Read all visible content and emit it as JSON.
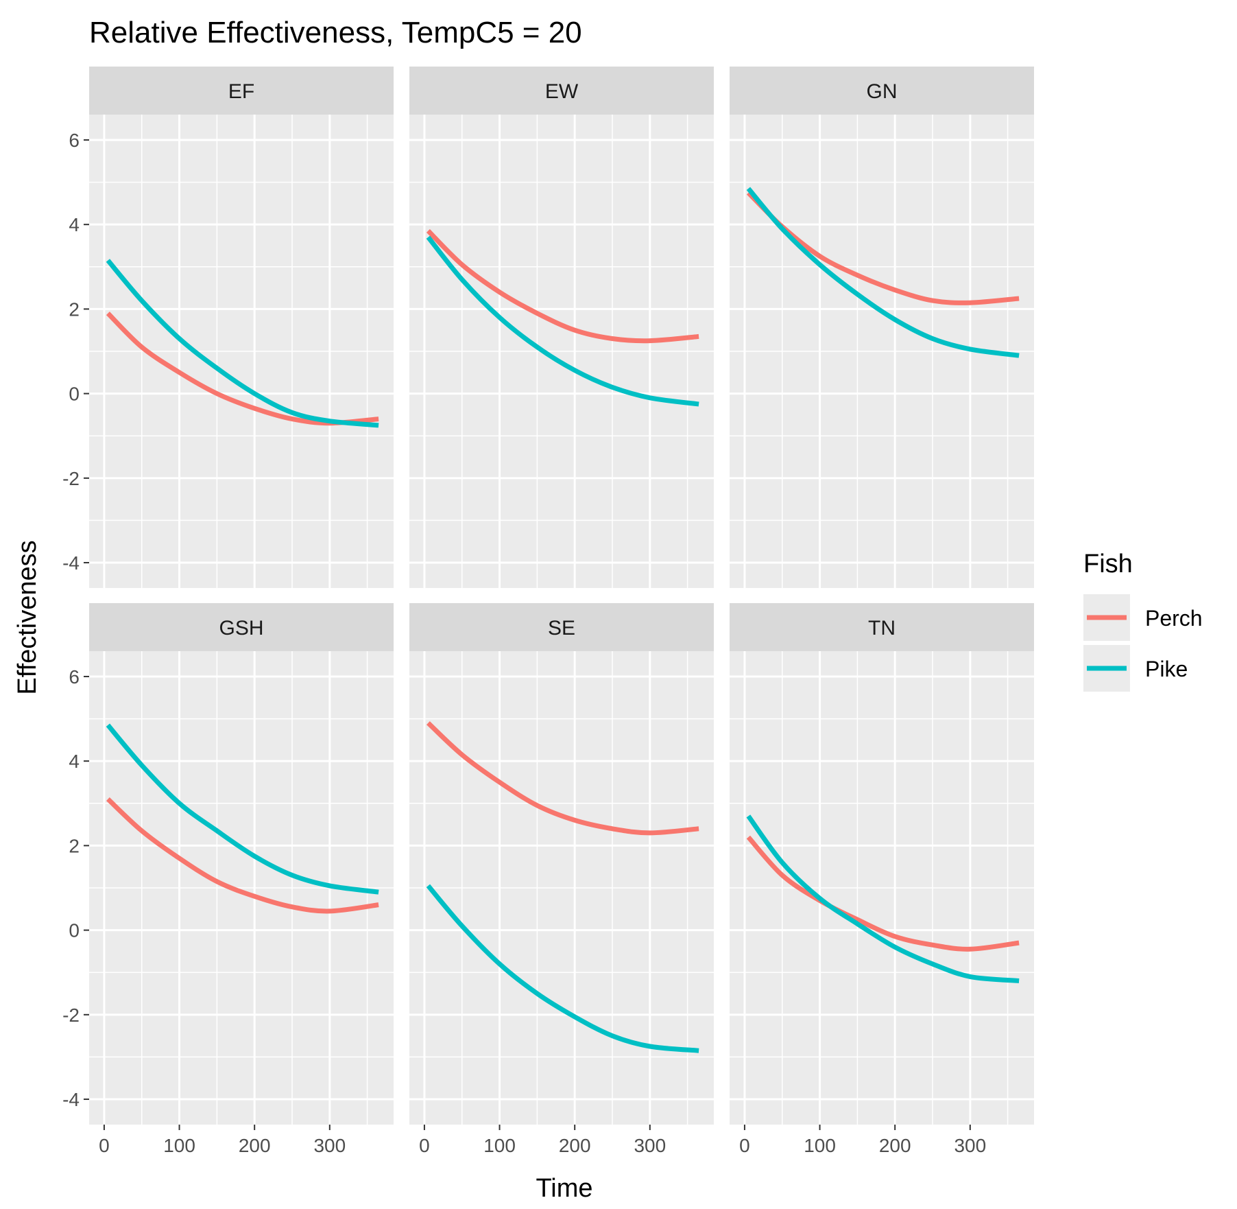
{
  "chart_data": {
    "type": "line",
    "title": "Relative Effectiveness, TempC5 = 20",
    "xlabel": "Time",
    "ylabel": "Effectiveness",
    "xlim": [
      -20,
      385
    ],
    "ylim": [
      -4.6,
      6.6
    ],
    "x_ticks": [
      0,
      100,
      200,
      300
    ],
    "y_ticks": [
      -4,
      -2,
      0,
      2,
      4,
      6
    ],
    "grid": true,
    "legend": {
      "title": "Fish",
      "position": "right",
      "entries": [
        {
          "name": "Perch",
          "color": "#F8766D"
        },
        {
          "name": "Pike",
          "color": "#00BFC4"
        }
      ]
    },
    "x": [
      5,
      50,
      100,
      150,
      200,
      250,
      300,
      365
    ],
    "panels": [
      {
        "label": "EF",
        "series": [
          {
            "name": "Perch",
            "values": [
              1.9,
              1.1,
              0.5,
              0.0,
              -0.35,
              -0.6,
              -0.7,
              -0.6
            ]
          },
          {
            "name": "Pike",
            "values": [
              3.15,
              2.2,
              1.3,
              0.6,
              0.0,
              -0.45,
              -0.65,
              -0.75
            ]
          }
        ]
      },
      {
        "label": "EW",
        "series": [
          {
            "name": "Perch",
            "values": [
              3.85,
              3.05,
              2.4,
              1.9,
              1.5,
              1.3,
              1.25,
              1.35
            ]
          },
          {
            "name": "Pike",
            "values": [
              3.7,
              2.7,
              1.8,
              1.1,
              0.55,
              0.15,
              -0.1,
              -0.25
            ]
          }
        ]
      },
      {
        "label": "GN",
        "series": [
          {
            "name": "Perch",
            "values": [
              4.75,
              3.95,
              3.25,
              2.8,
              2.45,
              2.2,
              2.15,
              2.25
            ]
          },
          {
            "name": "Pike",
            "values": [
              4.85,
              3.9,
              3.05,
              2.35,
              1.75,
              1.3,
              1.05,
              0.9
            ]
          }
        ]
      },
      {
        "label": "GSH",
        "series": [
          {
            "name": "Perch",
            "values": [
              3.1,
              2.35,
              1.7,
              1.15,
              0.8,
              0.55,
              0.45,
              0.6
            ]
          },
          {
            "name": "Pike",
            "values": [
              4.85,
              3.9,
              3.0,
              2.35,
              1.75,
              1.3,
              1.05,
              0.9
            ]
          }
        ]
      },
      {
        "label": "SE",
        "series": [
          {
            "name": "Perch",
            "values": [
              4.9,
              4.15,
              3.5,
              2.95,
              2.6,
              2.4,
              2.3,
              2.4
            ]
          },
          {
            "name": "Pike",
            "values": [
              1.05,
              0.1,
              -0.8,
              -1.5,
              -2.05,
              -2.5,
              -2.75,
              -2.85
            ]
          }
        ]
      },
      {
        "label": "TN",
        "series": [
          {
            "name": "Perch",
            "values": [
              2.2,
              1.3,
              0.7,
              0.25,
              -0.15,
              -0.35,
              -0.45,
              -0.3
            ]
          },
          {
            "name": "Pike",
            "values": [
              2.7,
              1.6,
              0.75,
              0.15,
              -0.4,
              -0.8,
              -1.1,
              -1.2
            ]
          }
        ]
      }
    ]
  }
}
